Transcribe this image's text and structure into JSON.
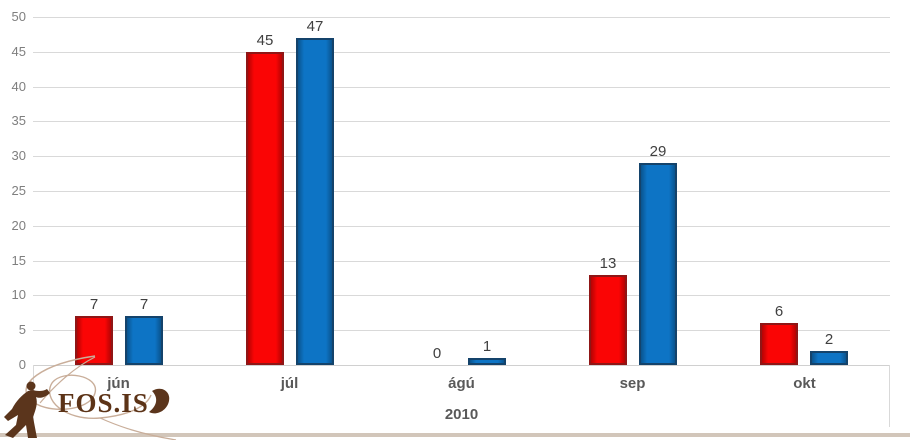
{
  "chart_data": {
    "type": "bar",
    "categories": [
      "jún",
      "júl",
      "ágú",
      "sep",
      "okt"
    ],
    "series": [
      {
        "name": "red-series",
        "color": "#fa0505",
        "border": "#8f1616",
        "values": [
          7,
          45,
          0,
          13,
          6
        ]
      },
      {
        "name": "blue-series",
        "color": "#0d74c5",
        "border": "#14436b",
        "values": [
          7,
          47,
          1,
          29,
          2
        ]
      }
    ],
    "group_label": "2010",
    "title": "",
    "xlabel": "2010",
    "ylabel": "",
    "ylim": [
      0,
      50
    ],
    "ytick_step": 5,
    "grid": true,
    "legend_position": "none",
    "value_labels": [
      [
        "7",
        "45",
        "0",
        "13",
        "6"
      ],
      [
        "7",
        "47",
        "1",
        "29",
        "2"
      ]
    ],
    "colors": {
      "gridline": "#d9d9d9",
      "axis_line": "#d0d0d0",
      "y_tick_text": "#7f7f7f",
      "category_text": "#595959",
      "value_text": "#404040"
    }
  },
  "logo": {
    "text": "FOS.IS",
    "color": "#5c3317",
    "line_color": "#c9ae9a"
  },
  "footer": {
    "rule_color": "#d2c6ba"
  }
}
